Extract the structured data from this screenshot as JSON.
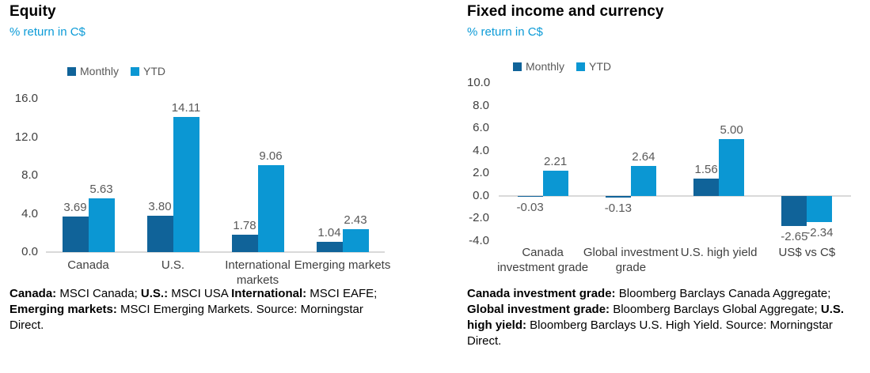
{
  "chart_data": [
    {
      "type": "bar",
      "title": "Equity",
      "subtitle": "% return in C$",
      "legend_position": "top",
      "grid": false,
      "categories": [
        "Canada",
        "U.S.",
        "International\nmarkets",
        "Emerging markets"
      ],
      "series": [
        {
          "name": "Monthly",
          "color_key": "monthly",
          "values": [
            3.69,
            3.8,
            1.78,
            1.04
          ],
          "labels": [
            "3.69",
            "3.80",
            "1.78",
            "1.04"
          ]
        },
        {
          "name": "YTD",
          "color_key": "ytd",
          "values": [
            5.63,
            14.11,
            9.06,
            2.43
          ],
          "labels": [
            "5.63",
            "14.11",
            "9.06",
            "2.43"
          ]
        }
      ],
      "ylim": [
        0,
        16
      ],
      "yticks": [
        "16.0",
        "12.0",
        "8.0",
        "4.0",
        "0.0"
      ],
      "footnote": [
        {
          "t": "Canada:",
          "b": 1
        },
        {
          "t": " MSCI Canada; ",
          "b": 0
        },
        {
          "t": "U.S.:",
          "b": 1
        },
        {
          "t": " MSCI USA ",
          "b": 0
        },
        {
          "t": "International:",
          "b": 1
        },
        {
          "t": " MSCI EAFE; ",
          "b": 0
        },
        {
          "t": "Emerging markets:",
          "b": 1
        },
        {
          "t": " MSCI Emerging Markets. Source: Morningstar Direct.",
          "b": 0
        }
      ]
    },
    {
      "type": "bar",
      "title": "Fixed income and currency",
      "subtitle": "% return in C$",
      "legend_position": "top",
      "grid": false,
      "categories": [
        "Canada\ninvestment grade",
        "Global investment\ngrade",
        "U.S. high yield",
        "US$ vs C$"
      ],
      "series": [
        {
          "name": "Monthly",
          "color_key": "monthly",
          "values": [
            -0.03,
            -0.13,
            1.56,
            -2.65
          ],
          "labels": [
            "-0.03",
            "-0.13",
            "1.56",
            "-2.65"
          ]
        },
        {
          "name": "YTD",
          "color_key": "ytd",
          "values": [
            2.21,
            2.64,
            5.0,
            -2.34
          ],
          "labels": [
            "2.21",
            "2.64",
            "5.00",
            "-2.34"
          ]
        }
      ],
      "ylim": [
        -4,
        10
      ],
      "yticks": [
        "10.0",
        "8.0",
        "6.0",
        "4.0",
        "2.0",
        "0.0",
        "-2.0",
        "-4.0"
      ],
      "footnote": [
        {
          "t": "Canada investment grade:",
          "b": 1
        },
        {
          "t": " Bloomberg Barclays Canada Aggregate; ",
          "b": 0
        },
        {
          "t": "Global investment grade:",
          "b": 1
        },
        {
          "t": " Bloomberg Barclays Global Aggregate; ",
          "b": 0
        },
        {
          "t": "U.S. high yield:",
          "b": 1
        },
        {
          "t": " Bloomberg Barclays U.S. High Yield. Source: Morningstar Direct.",
          "b": 0
        }
      ]
    }
  ],
  "colors": {
    "monthly": "#106399",
    "ytd": "#0B97D3",
    "subtitle": "#0C9BD7",
    "axis_line": "#D9D9D9",
    "data_label": "#595959",
    "tick_label": "#3F3F3F",
    "legend_text": "#595959",
    "footnote_text": "#000000"
  }
}
